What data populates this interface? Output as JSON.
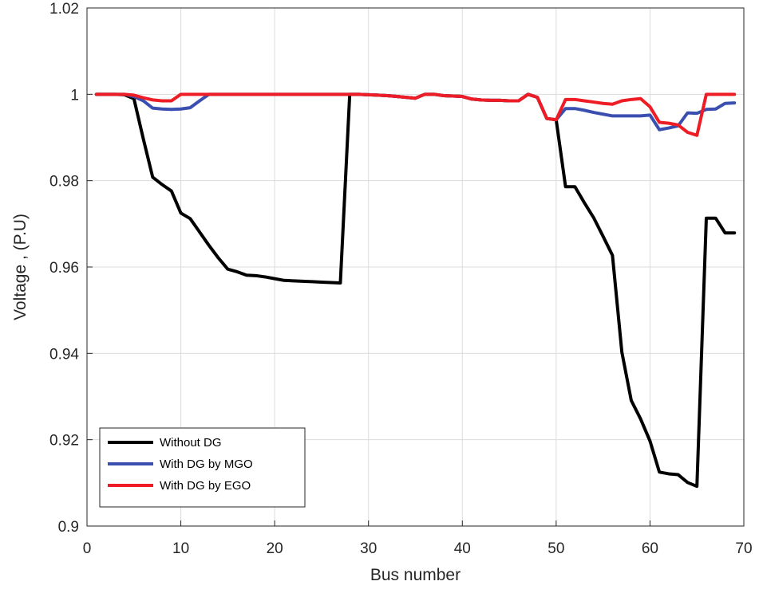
{
  "chart_data": {
    "type": "line",
    "title": "",
    "xlabel": "Bus number",
    "ylabel": "Voltage , (P.U)",
    "xlim": [
      0,
      70
    ],
    "ylim": [
      0.9,
      1.02
    ],
    "xticks": [
      0,
      10,
      20,
      30,
      40,
      50,
      60,
      70
    ],
    "yticks": [
      0.9,
      0.92,
      0.94,
      0.96,
      0.98,
      1,
      1.02
    ],
    "xtick_labels": [
      "0",
      "10",
      "20",
      "30",
      "40",
      "50",
      "60",
      "70"
    ],
    "ytick_labels": [
      "0.9",
      "0.92",
      "0.94",
      "0.96",
      "0.98",
      "1",
      "1.02"
    ],
    "grid": true,
    "legend_position": "bottom-left",
    "x": [
      1,
      2,
      3,
      4,
      5,
      6,
      7,
      8,
      9,
      10,
      11,
      12,
      13,
      14,
      15,
      16,
      17,
      18,
      19,
      20,
      21,
      22,
      23,
      24,
      25,
      26,
      27,
      28,
      29,
      30,
      31,
      32,
      33,
      34,
      35,
      36,
      37,
      38,
      39,
      40,
      41,
      42,
      43,
      44,
      45,
      46,
      47,
      48,
      49,
      50,
      51,
      52,
      53,
      54,
      55,
      56,
      57,
      58,
      59,
      60,
      61,
      62,
      63,
      64,
      65,
      66,
      67,
      68,
      69
    ],
    "series": [
      {
        "name": "Without DG",
        "color": "#000000",
        "values": [
          1.0,
          1.0,
          1.0,
          0.9999,
          0.999,
          0.9897,
          0.9808,
          0.9791,
          0.9776,
          0.9725,
          0.9712,
          0.9681,
          0.965,
          0.9621,
          0.9595,
          0.9589,
          0.9581,
          0.958,
          0.9577,
          0.9573,
          0.9569,
          0.9568,
          0.9567,
          0.9566,
          0.9565,
          0.9564,
          0.9563,
          1.0,
          1.0,
          0.9999,
          0.9998,
          0.9997,
          0.9995,
          0.9993,
          0.9991,
          1.0,
          1.0,
          0.9997,
          0.9996,
          0.9995,
          0.9989,
          0.9987,
          0.9986,
          0.9986,
          0.9985,
          0.9985,
          1.0,
          0.9993,
          0.9944,
          0.9941,
          0.9786,
          0.9786,
          0.9749,
          0.9714,
          0.9671,
          0.9627,
          0.9403,
          0.9291,
          0.9248,
          0.9197,
          0.9125,
          0.9121,
          0.9119,
          0.9101,
          0.9092,
          0.9713,
          0.9713,
          0.9679,
          0.9679
        ]
      },
      {
        "name": "With DG by MGO",
        "color": "#3a4fb0",
        "values": [
          1.0,
          1.0,
          1.0,
          1.0,
          0.9995,
          0.9985,
          0.9968,
          0.9966,
          0.9965,
          0.9966,
          0.9969,
          0.9985,
          1.0,
          1.0,
          1.0,
          1.0,
          1.0,
          1.0,
          1.0,
          1.0,
          1.0,
          1.0,
          1.0,
          1.0,
          1.0,
          1.0,
          1.0,
          1.0,
          1.0,
          0.9999,
          0.9998,
          0.9997,
          0.9995,
          0.9993,
          0.9991,
          1.0,
          1.0,
          0.9997,
          0.9996,
          0.9995,
          0.9989,
          0.9987,
          0.9986,
          0.9986,
          0.9985,
          0.9985,
          1.0,
          0.9993,
          0.9944,
          0.9941,
          0.9967,
          0.9967,
          0.9963,
          0.9958,
          0.9954,
          0.995,
          0.995,
          0.995,
          0.995,
          0.9952,
          0.9918,
          0.9922,
          0.9927,
          0.9957,
          0.9956,
          0.9965,
          0.9966,
          0.9979,
          0.998
        ]
      },
      {
        "name": "With DG by EGO",
        "color": "#ee1c24",
        "values": [
          1.0,
          1.0,
          1.0,
          1.0,
          0.9998,
          0.9992,
          0.9987,
          0.9985,
          0.9985,
          1.0,
          1.0,
          1.0,
          1.0,
          1.0,
          1.0,
          1.0,
          1.0,
          1.0,
          1.0,
          1.0,
          1.0,
          1.0,
          1.0,
          1.0,
          1.0,
          1.0,
          1.0,
          1.0,
          1.0,
          0.9999,
          0.9998,
          0.9997,
          0.9995,
          0.9993,
          0.9991,
          1.0,
          1.0,
          0.9997,
          0.9996,
          0.9995,
          0.9989,
          0.9987,
          0.9986,
          0.9986,
          0.9985,
          0.9985,
          1.0,
          0.9993,
          0.9944,
          0.9941,
          0.9988,
          0.9988,
          0.9985,
          0.9982,
          0.9979,
          0.9977,
          0.9985,
          0.9988,
          0.999,
          0.9971,
          0.9935,
          0.9933,
          0.9929,
          0.9912,
          0.9905,
          1.0,
          1.0,
          1.0,
          1.0
        ]
      }
    ]
  }
}
